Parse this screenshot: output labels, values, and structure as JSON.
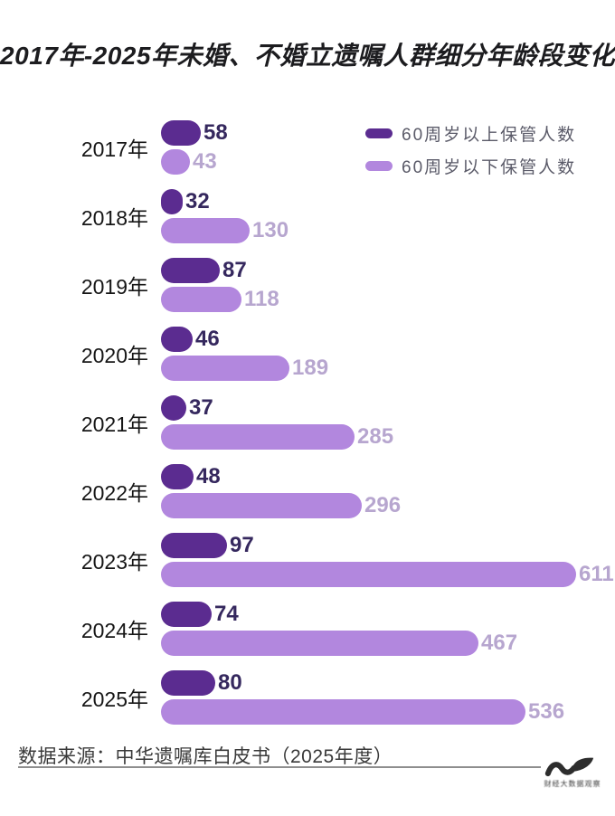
{
  "title": "2017年-2025年未婚、不婚立遗嘱人群细分年龄段变化",
  "legend": {
    "items": [
      {
        "label": "60周岁以上保管人数",
        "color": "#5b2c90"
      },
      {
        "label": "60周岁以下保管人数",
        "color": "#b287de"
      }
    ]
  },
  "chart_data": {
    "type": "bar",
    "orientation": "horizontal",
    "title": "2017年-2025年未婚、不婚立遗嘱人群细分年龄段变化",
    "categories": [
      "2017年",
      "2018年",
      "2019年",
      "2020年",
      "2021年",
      "2022年",
      "2023年",
      "2024年",
      "2025年"
    ],
    "series": [
      {
        "name": "60周岁以上保管人数",
        "color": "#5b2c90",
        "label_color": "#35285e",
        "values": [
          58,
          32,
          87,
          46,
          37,
          48,
          97,
          74,
          80
        ]
      },
      {
        "name": "60周岁以下保管人数",
        "color": "#b287de",
        "label_color": "#b7a6cf",
        "values": [
          43,
          130,
          118,
          189,
          285,
          296,
          611,
          467,
          536
        ]
      }
    ],
    "xlim": [
      0,
      650
    ],
    "grid": false,
    "value_labels": true,
    "legend_position": "top-right"
  },
  "footer": {
    "source": "数据来源：中华遗嘱库白皮书（2025年度）",
    "watermark": "财经大数据观察"
  },
  "colors": {
    "background": "#ffffff",
    "title_text": "#1c1c1f",
    "category_text": "#161616",
    "over60_bar": "#5b2c90",
    "under60_bar": "#b287de",
    "over60_value_text": "#35285e",
    "under60_value_text": "#b7a6cf",
    "legend_text": "#5a5a68",
    "source_text": "#3a3a3a",
    "rule": "#8e8e8e",
    "logo": "#2d2d2d"
  }
}
